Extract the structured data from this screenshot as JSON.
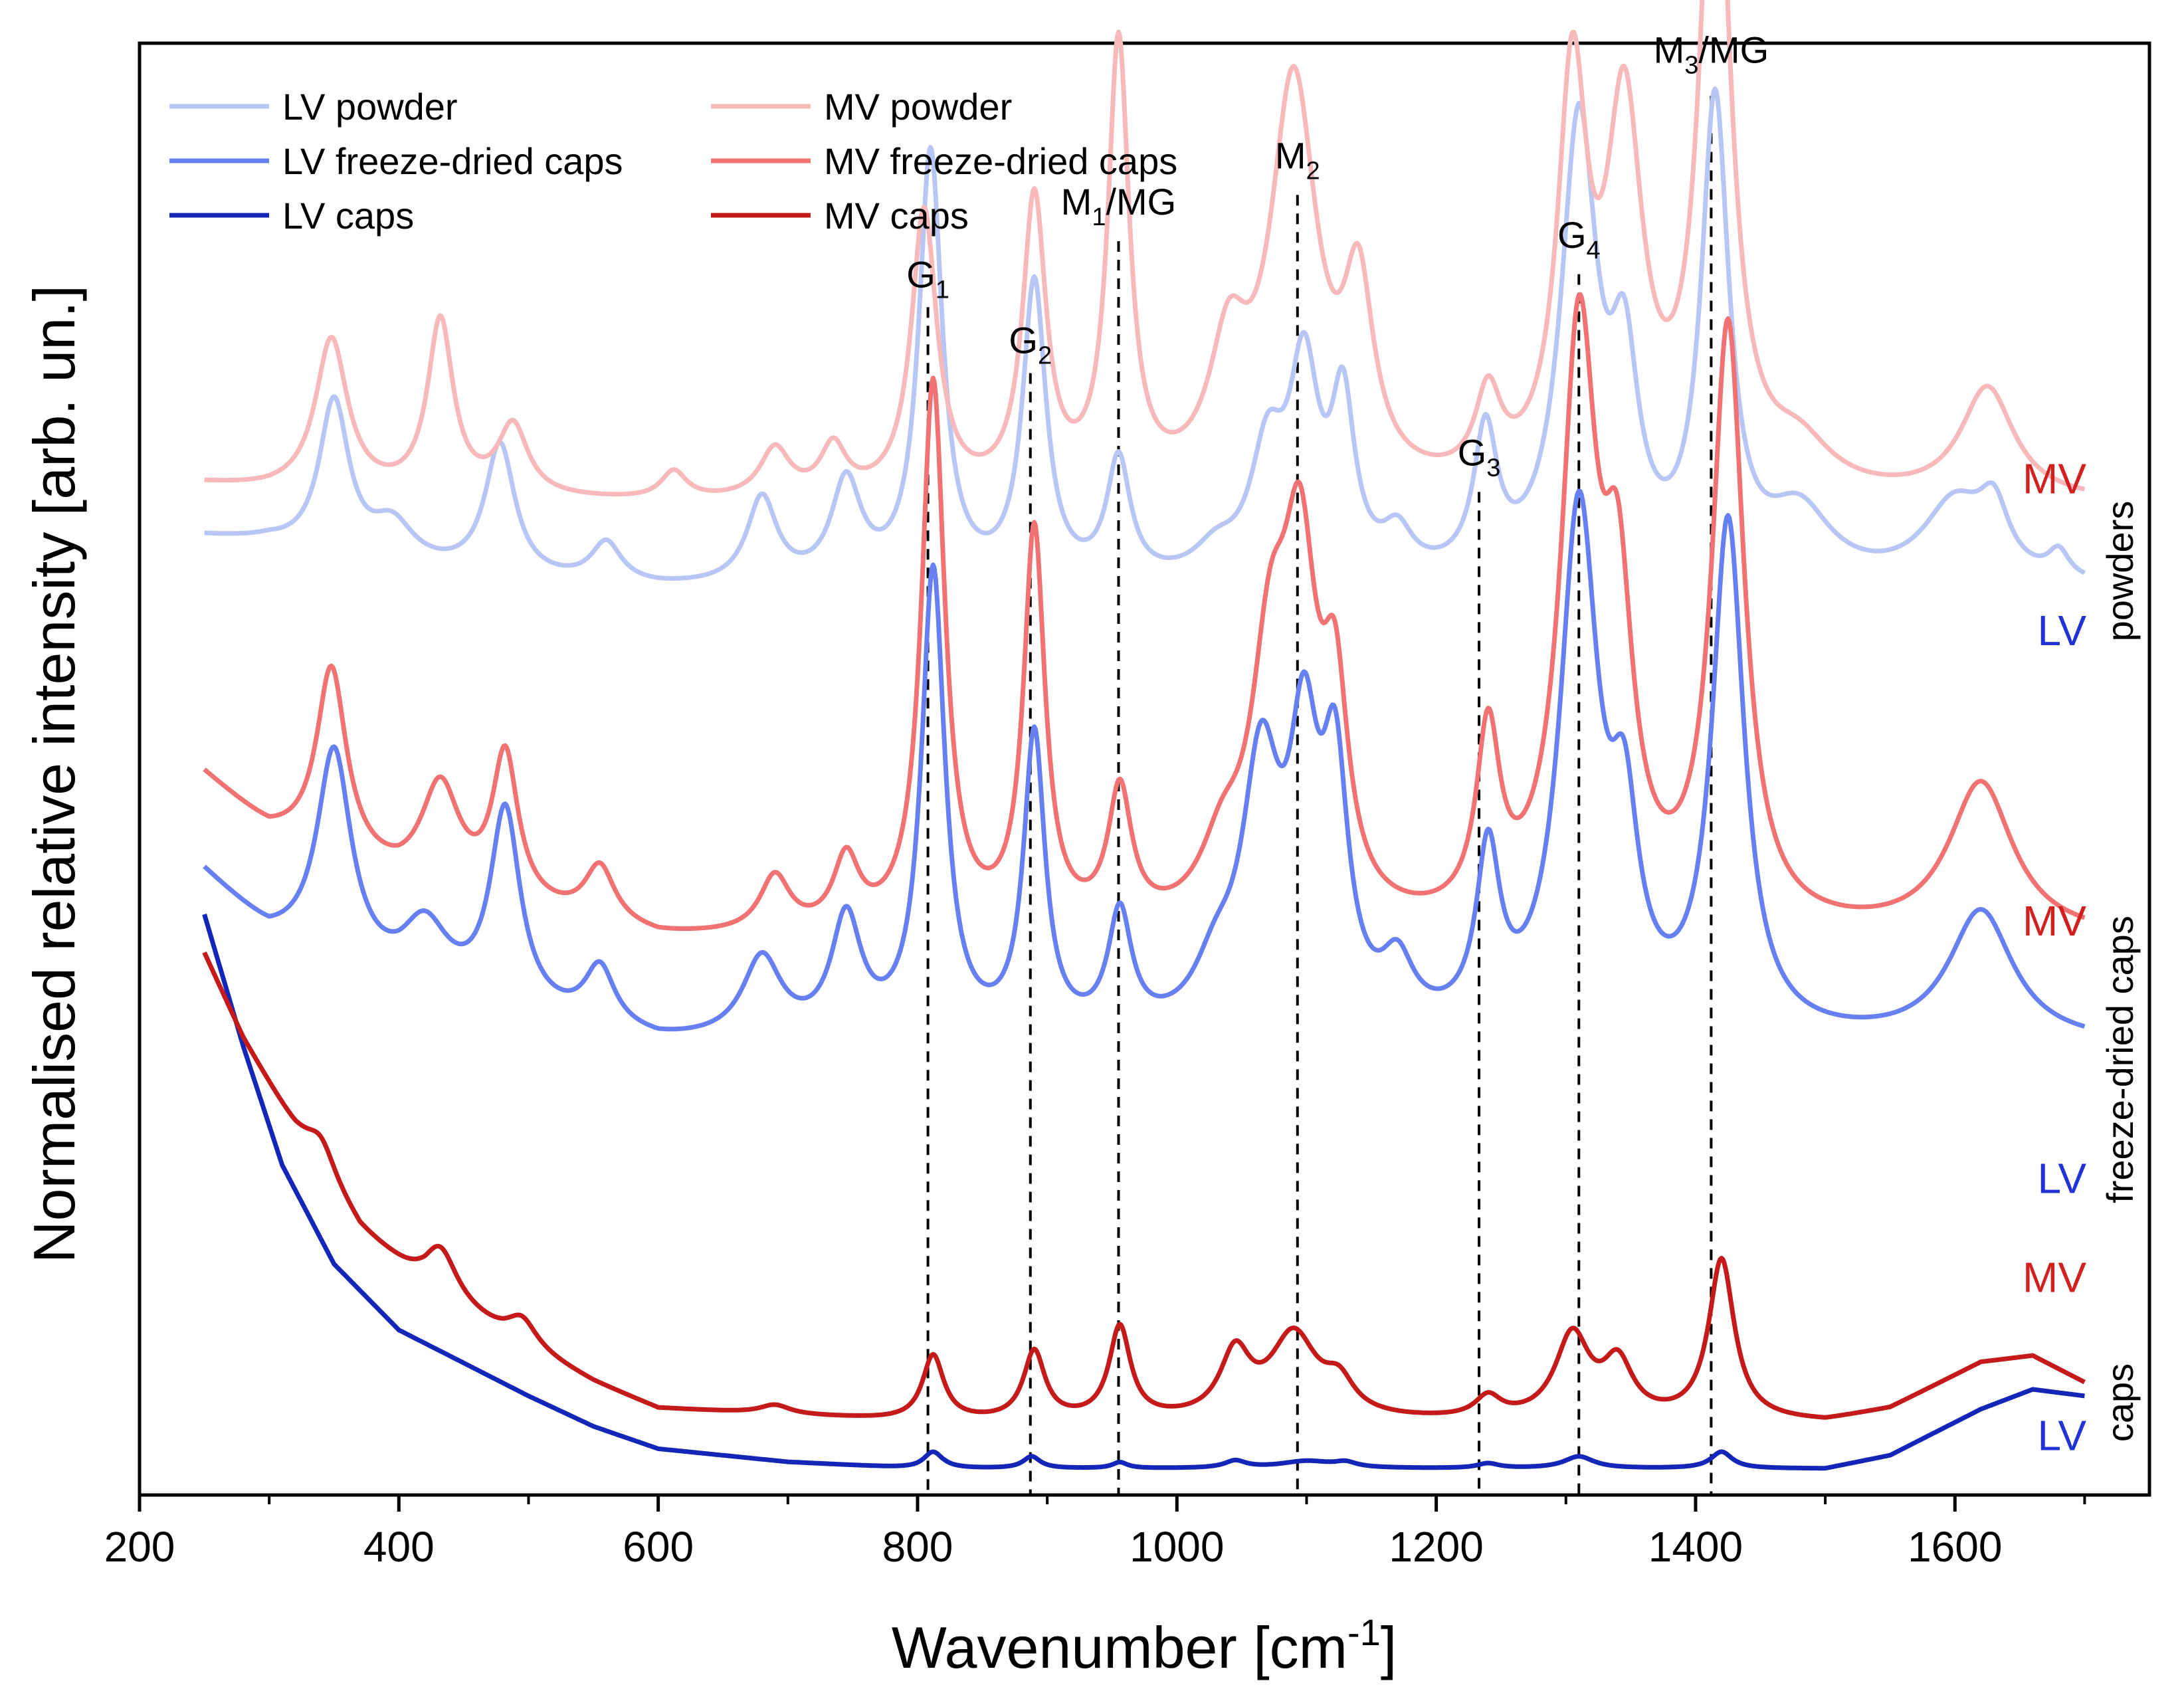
{
  "chart_data": {
    "type": "line",
    "title": "",
    "xlabel": {
      "text": "Wavenumber [cm",
      "sup": "-1",
      "tail": "]"
    },
    "ylabel": "Normalised relative intensity [arb. un.]",
    "xlim": [
      200,
      1750
    ],
    "ylim": [
      0,
      11
    ],
    "xticks": [
      200,
      400,
      600,
      800,
      1000,
      1200,
      1400,
      1600
    ],
    "xtick_labels": [
      "200",
      "400",
      "600",
      "800",
      "1000",
      "1200",
      "1400",
      "1600"
    ],
    "grid": false,
    "legend_position": "top-left",
    "colors": {
      "lv_powder": "#b8c6f5",
      "lv_fd": "#6680f2",
      "lv_caps": "#1426b8",
      "mv_powder": "#f7b9b9",
      "mv_fd": "#f07272",
      "mv_caps": "#c41a1a",
      "lv_text": "#2233d6",
      "mv_text": "#d12020",
      "axis": "#000000",
      "peakline": "#000000"
    },
    "series": [
      {
        "name": "LV powder",
        "color_key": "lv_powder",
        "offset": 6.85,
        "baseline_pts": [
          [
            250,
            0.4
          ],
          [
            300,
            0.35
          ],
          [
            350,
            0.2
          ],
          [
            400,
            0.15
          ],
          [
            500,
            0.05
          ],
          [
            600,
            0.0
          ],
          [
            700,
            0.0
          ],
          [
            800,
            0.0
          ],
          [
            1000,
            0.0
          ],
          [
            1200,
            0.0
          ],
          [
            1400,
            0.0
          ],
          [
            1500,
            0.0
          ],
          [
            1700,
            0.0
          ]
        ],
        "peak_scale": [
          [
            250,
            1.0
          ],
          [
            1700,
            1.0
          ]
        ]
      },
      {
        "name": "LV freeze-dried caps",
        "color_key": "lv_fd",
        "offset": 3.4,
        "baseline_pts": [
          [
            250,
            1.3
          ],
          [
            300,
            0.8
          ],
          [
            350,
            0.6
          ],
          [
            400,
            0.4
          ],
          [
            500,
            0.2
          ],
          [
            600,
            0.0
          ],
          [
            700,
            0.0
          ],
          [
            800,
            0.0
          ],
          [
            1000,
            0.0
          ],
          [
            1200,
            0.0
          ],
          [
            1400,
            0.0
          ],
          [
            1500,
            0.0
          ],
          [
            1700,
            0.0
          ]
        ],
        "peak_scale": [
          [
            250,
            1.1
          ],
          [
            1700,
            1.1
          ]
        ]
      },
      {
        "name": "LV caps",
        "color_key": "lv_caps",
        "offset": 0.2,
        "baseline_pts": [
          [
            250,
            4.2
          ],
          [
            280,
            3.2
          ],
          [
            310,
            2.3
          ],
          [
            350,
            1.55
          ],
          [
            400,
            1.05
          ],
          [
            450,
            0.8
          ],
          [
            500,
            0.55
          ],
          [
            550,
            0.32
          ],
          [
            600,
            0.15
          ],
          [
            700,
            0.05
          ],
          [
            800,
            0.0
          ],
          [
            1000,
            0.0
          ],
          [
            1200,
            0.0
          ],
          [
            1400,
            0.0
          ],
          [
            1500,
            0.0
          ],
          [
            1550,
            0.1
          ],
          [
            1620,
            0.45
          ],
          [
            1660,
            0.6
          ],
          [
            1700,
            0.55
          ]
        ],
        "peak_scale": [
          [
            250,
            0.18
          ],
          [
            1700,
            0.18
          ]
        ]
      },
      {
        "name": "MV powder",
        "color_key": "mv_powder",
        "offset": 7.5,
        "baseline_pts": [
          [
            250,
            0.15
          ],
          [
            300,
            0.1
          ],
          [
            400,
            0.05
          ],
          [
            600,
            0.0
          ],
          [
            800,
            0.0
          ],
          [
            1000,
            0.0
          ],
          [
            1200,
            0.0
          ],
          [
            1400,
            0.0
          ],
          [
            1700,
            0.0
          ]
        ],
        "peak_scale": [
          [
            250,
            1.05
          ],
          [
            1700,
            1.05
          ]
        ]
      },
      {
        "name": "MV freeze-dried caps",
        "color_key": "mv_fd",
        "offset": 4.2,
        "baseline_pts": [
          [
            250,
            1.25
          ],
          [
            300,
            0.8
          ],
          [
            350,
            0.6
          ],
          [
            400,
            0.4
          ],
          [
            500,
            0.2
          ],
          [
            600,
            0.0
          ],
          [
            700,
            0.0
          ],
          [
            800,
            0.0
          ],
          [
            1000,
            0.0
          ],
          [
            1200,
            0.0
          ],
          [
            1400,
            0.0
          ],
          [
            1500,
            0.0
          ],
          [
            1700,
            0.0
          ]
        ],
        "peak_scale": [
          [
            250,
            1.05
          ],
          [
            1700,
            1.05
          ]
        ]
      },
      {
        "name": "MV caps",
        "color_key": "mv_caps",
        "offset": 0.55,
        "baseline_pts": [
          [
            250,
            3.55
          ],
          [
            280,
            2.9
          ],
          [
            320,
            2.2
          ],
          [
            370,
            1.45
          ],
          [
            420,
            1.0
          ],
          [
            480,
            0.65
          ],
          [
            550,
            0.3
          ],
          [
            600,
            0.1
          ],
          [
            700,
            0.05
          ],
          [
            800,
            0.0
          ],
          [
            1000,
            0.0
          ],
          [
            1200,
            0.0
          ],
          [
            1400,
            0.0
          ],
          [
            1500,
            0.0
          ],
          [
            1550,
            0.1
          ],
          [
            1620,
            0.45
          ],
          [
            1660,
            0.5
          ],
          [
            1700,
            0.3
          ]
        ],
        "peak_scale": [
          [
            250,
            0.45
          ],
          [
            1700,
            0.45
          ]
        ]
      }
    ],
    "peak_profiles": {
      "LV powder": [
        [
          350,
          1.2,
          14
        ],
        [
          395,
          0.3,
          20
        ],
        [
          478,
          1.0,
          14
        ],
        [
          560,
          0.3,
          14
        ],
        [
          680,
          0.65,
          14
        ],
        [
          745,
          0.75,
          14
        ],
        [
          810,
          3.25,
          11
        ],
        [
          890,
          2.25,
          11
        ],
        [
          955,
          0.9,
          11
        ],
        [
          1030,
          0.2,
          20
        ],
        [
          1070,
          0.9,
          16
        ],
        [
          1098,
          1.5,
          14
        ],
        [
          1128,
          1.25,
          11
        ],
        [
          1170,
          0.3,
          14
        ],
        [
          1238,
          1.05,
          11
        ],
        [
          1310,
          3.4,
          17
        ],
        [
          1345,
          1.4,
          13
        ],
        [
          1415,
          3.55,
          13
        ],
        [
          1480,
          0.5,
          30
        ],
        [
          1600,
          0.6,
          30
        ],
        [
          1630,
          0.45,
          14
        ],
        [
          1680,
          0.2,
          10
        ]
      ],
      "LV freeze-dried caps": [
        [
          350,
          1.45,
          16
        ],
        [
          420,
          0.45,
          22
        ],
        [
          482,
          1.35,
          14
        ],
        [
          555,
          0.4,
          14
        ],
        [
          680,
          0.55,
          18
        ],
        [
          745,
          0.8,
          14
        ],
        [
          812,
          3.2,
          11
        ],
        [
          890,
          2.05,
          10
        ],
        [
          956,
          0.8,
          11
        ],
        [
          1030,
          0.35,
          20
        ],
        [
          1065,
          1.75,
          18
        ],
        [
          1098,
          1.75,
          14
        ],
        [
          1122,
          1.6,
          12
        ],
        [
          1170,
          0.4,
          15
        ],
        [
          1240,
          1.15,
          11
        ],
        [
          1310,
          3.55,
          18
        ],
        [
          1345,
          1.2,
          13
        ],
        [
          1425,
          3.5,
          15
        ],
        [
          1620,
          0.9,
          30
        ]
      ],
      "LV caps": [
        [
          812,
          0.7,
          9
        ],
        [
          888,
          0.5,
          8
        ],
        [
          956,
          0.25,
          7
        ],
        [
          1045,
          0.3,
          10
        ],
        [
          1100,
          0.3,
          25
        ],
        [
          1130,
          0.2,
          10
        ],
        [
          1240,
          0.2,
          10
        ],
        [
          1310,
          0.5,
          14
        ],
        [
          1420,
          0.7,
          10
        ]
      ],
      "MV powder": [
        [
          348,
          1.1,
          15
        ],
        [
          432,
          1.25,
          12
        ],
        [
          488,
          0.5,
          14
        ],
        [
          612,
          0.2,
          12
        ],
        [
          690,
          0.35,
          14
        ],
        [
          735,
          0.35,
          12
        ],
        [
          805,
          2.05,
          12
        ],
        [
          890,
          2.1,
          11
        ],
        [
          955,
          3.2,
          10
        ],
        [
          1040,
          0.9,
          18
        ],
        [
          1090,
          2.9,
          22
        ],
        [
          1140,
          1.3,
          14
        ],
        [
          1240,
          0.6,
          12
        ],
        [
          1305,
          2.85,
          14
        ],
        [
          1345,
          2.6,
          17
        ],
        [
          1415,
          5.0,
          14
        ],
        [
          1480,
          0.3,
          30
        ],
        [
          1625,
          0.8,
          25
        ]
      ],
      "MV freeze-dried caps": [
        [
          348,
          1.35,
          14
        ],
        [
          432,
          0.75,
          18
        ],
        [
          482,
          1.05,
          12
        ],
        [
          555,
          0.4,
          14
        ],
        [
          690,
          0.4,
          14
        ],
        [
          745,
          0.5,
          12
        ],
        [
          812,
          3.95,
          11
        ],
        [
          890,
          2.85,
          10
        ],
        [
          956,
          0.95,
          11
        ],
        [
          1035,
          0.45,
          20
        ],
        [
          1072,
          1.7,
          18
        ],
        [
          1095,
          2.3,
          16
        ],
        [
          1122,
          1.4,
          12
        ],
        [
          1240,
          1.3,
          11
        ],
        [
          1310,
          4.15,
          17
        ],
        [
          1340,
          2.0,
          14
        ],
        [
          1425,
          4.3,
          15
        ],
        [
          1620,
          1.1,
          30
        ]
      ],
      "MV caps": [
        [
          340,
          0.55,
          14
        ],
        [
          432,
          0.85,
          16
        ],
        [
          495,
          0.45,
          14
        ],
        [
          690,
          0.15,
          14
        ],
        [
          812,
          1.1,
          10
        ],
        [
          890,
          1.15,
          10
        ],
        [
          956,
          1.55,
          10
        ],
        [
          1045,
          1.05,
          14
        ],
        [
          1090,
          1.4,
          22
        ],
        [
          1125,
          0.5,
          14
        ],
        [
          1240,
          0.35,
          12
        ],
        [
          1305,
          1.4,
          16
        ],
        [
          1340,
          0.9,
          14
        ],
        [
          1420,
          2.7,
          12
        ]
      ]
    },
    "legend": [
      {
        "label": "LV powder",
        "color_key": "lv_powder"
      },
      {
        "label": "LV freeze-dried caps",
        "color_key": "lv_fd"
      },
      {
        "label": "LV caps",
        "color_key": "lv_caps"
      },
      {
        "label": "MV powder",
        "color_key": "mv_powder"
      },
      {
        "label": "MV freeze-dried caps",
        "color_key": "mv_fd"
      },
      {
        "label": "MV caps",
        "color_key": "mv_caps"
      }
    ],
    "peak_markers": [
      {
        "x": 808,
        "label": "G",
        "sub": "1",
        "post": "",
        "y_label": 9.05,
        "y_top": 9.0
      },
      {
        "x": 887,
        "label": "G",
        "sub": "2",
        "post": "",
        "y_label": 8.55,
        "y_top": 8.5
      },
      {
        "x": 955,
        "label": "M",
        "sub": "1",
        "post": "/MG",
        "y_label": 9.6,
        "y_top": 9.5
      },
      {
        "x": 1093,
        "label": "M",
        "sub": "2",
        "post": "",
        "y_label": 9.95,
        "y_top": 9.85
      },
      {
        "x": 1233,
        "label": "G",
        "sub": "3",
        "post": "",
        "y_label": 7.7,
        "y_top": 7.6
      },
      {
        "x": 1310,
        "label": "G",
        "sub": "4",
        "post": "",
        "y_label": 9.35,
        "y_top": 9.25
      },
      {
        "x": 1412,
        "label": "M",
        "sub": "3",
        "post": "/MG",
        "y_label": 10.75,
        "y_top": 10.6
      }
    ],
    "series_labels": [
      {
        "text": "MV",
        "color_key": "mv_text",
        "y": 7.7
      },
      {
        "text": "LV",
        "color_key": "lv_text",
        "y": 6.55
      },
      {
        "text": "MV",
        "color_key": "mv_text",
        "y": 4.35
      },
      {
        "text": "LV",
        "color_key": "lv_text",
        "y": 2.4
      },
      {
        "text": "MV",
        "color_key": "mv_text",
        "y": 1.65
      },
      {
        "text": "LV",
        "color_key": "lv_text",
        "y": 0.45
      }
    ],
    "group_labels": [
      {
        "text": "powders",
        "y_center": 7.0
      },
      {
        "text": "freeze-dried caps",
        "y_center": 3.3
      },
      {
        "text": "caps",
        "y_center": 0.7
      }
    ]
  }
}
